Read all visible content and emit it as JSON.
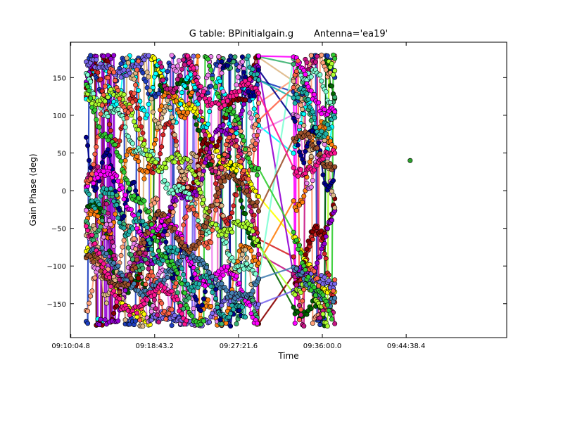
{
  "chart_data": {
    "type": "scatter",
    "title": "G table: BPinitialgain.g       Antenna='ea19'",
    "xlabel": "Time",
    "ylabel": "Gain Phase (deg)",
    "x_unit": "seconds_since_midnight",
    "xlim": [
      32702,
      35400
    ],
    "ylim": [
      -195,
      197
    ],
    "x_ticks": [
      {
        "value": 32704.8,
        "label": "09:10:04.8"
      },
      {
        "value": 33223.2,
        "label": "09:18:43.2"
      },
      {
        "value": 33741.6,
        "label": "09:27:21.6"
      },
      {
        "value": 34260.0,
        "label": "09:36:00.0"
      },
      {
        "value": 34778.4,
        "label": "09:44:38.4"
      }
    ],
    "y_ticks": [
      {
        "value": 150,
        "label": "150"
      },
      {
        "value": 100,
        "label": "100"
      },
      {
        "value": 50,
        "label": "50"
      },
      {
        "value": 0,
        "label": "0"
      },
      {
        "value": -50,
        "label": "−50"
      },
      {
        "value": -100,
        "label": "−100"
      },
      {
        "value": -150,
        "label": "−150"
      }
    ],
    "scan_blocks": [
      {
        "start": 32800,
        "end": 33580
      },
      {
        "start": 33601,
        "end": 33866
      },
      {
        "start": 34082,
        "end": 34337
      }
    ],
    "series_colors": [
      "#1f3fbf",
      "#d62728",
      "#006400",
      "#ffff00",
      "#00ffff",
      "#ff7f0e",
      "#ee82ee",
      "#8b0000",
      "#ffa07a",
      "#9400d3",
      "#deb887",
      "#7b68ee",
      "#3cb371",
      "#c71585",
      "#7fffd4",
      "#00008b",
      "#ff00ff",
      "#adff2f",
      "#20b2aa",
      "#ff6347",
      "#4682b4",
      "#a0522d",
      "#32cd32",
      "#ff1493"
    ],
    "highlight_points": [
      {
        "x": 34803,
        "y": 40,
        "color": "#2ca02c"
      }
    ],
    "grid": false
  }
}
